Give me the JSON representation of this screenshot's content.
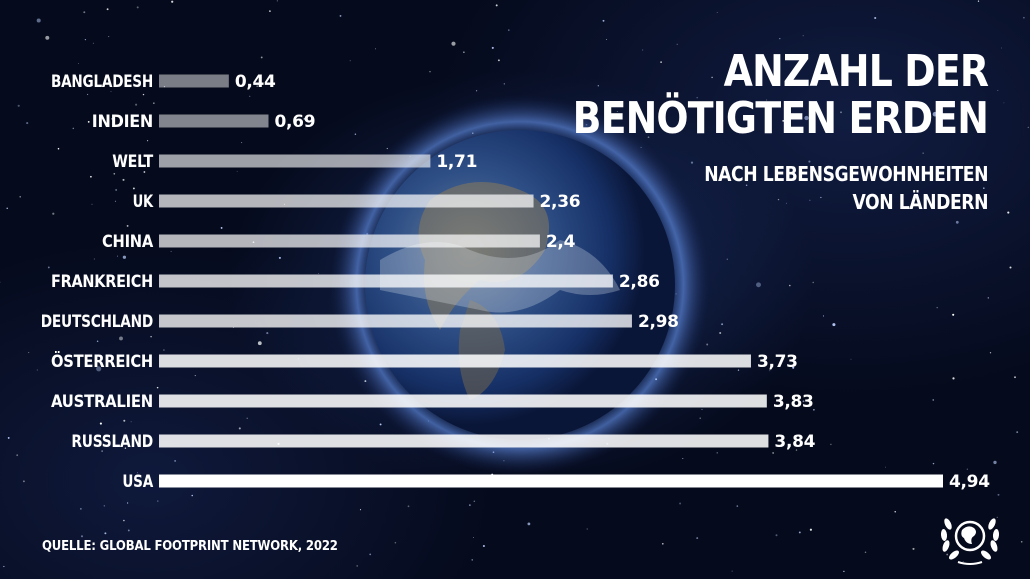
{
  "title": [
    "ANZAHL DER",
    "BENÖTIGTEN ERDEN"
  ],
  "subtitle": [
    "NACH LEBENSGEWOHNHEITEN",
    "VON LÄNDERN"
  ],
  "source": "QUELLE: GLOBAL FOOTPRINT NETWORK, 2022",
  "logo_icon": "globe-laurel-icon",
  "colors": {
    "background": "#050a1c",
    "bar": "#ffffff",
    "text": "#ffffff"
  },
  "chart_data": {
    "type": "bar",
    "orientation": "horizontal",
    "categories": [
      "BANGLADESH",
      "INDIEN",
      "WELT",
      "UK",
      "CHINA",
      "FRANKREICH",
      "DEUTSCHLAND",
      "ÖSTERREICH",
      "AUSTRALIEN",
      "RUSSLAND",
      "USA"
    ],
    "values": [
      0.44,
      0.69,
      1.71,
      2.36,
      2.4,
      2.86,
      2.98,
      3.73,
      3.83,
      3.84,
      4.94
    ],
    "value_labels": [
      "0,44",
      "0,69",
      "1,71",
      "2,36",
      "2,4",
      "2,86",
      "2,98",
      "3,73",
      "3,83",
      "3,84",
      "4,94"
    ],
    "xlim": [
      0,
      4.94
    ],
    "grid": false,
    "legend": "none"
  }
}
